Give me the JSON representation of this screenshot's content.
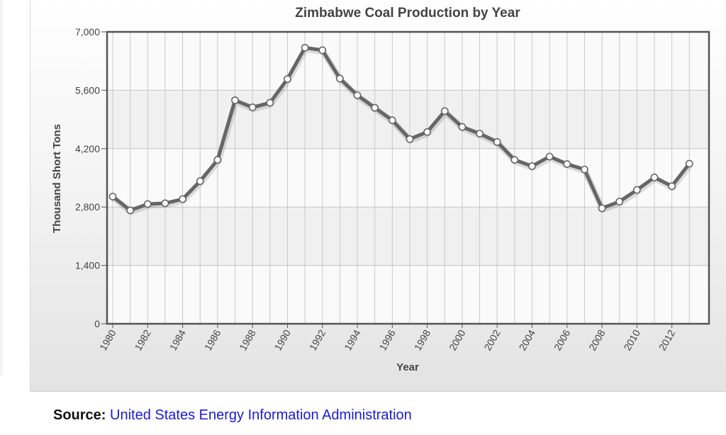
{
  "chart_data": {
    "type": "line",
    "title": "Zimbabwe Coal Production by Year",
    "xlabel": "Year",
    "ylabel": "Thousand Short Tons",
    "ylim": [
      0,
      7000
    ],
    "yticks": [
      "0",
      "1,400",
      "2,800",
      "4,200",
      "5,600",
      "7,000"
    ],
    "ytick_values": [
      0,
      1400,
      2800,
      4200,
      5600,
      7000
    ],
    "xticks": [
      "1980",
      "1982",
      "1984",
      "1986",
      "1988",
      "1990",
      "1992",
      "1994",
      "1996",
      "1998",
      "2000",
      "2002",
      "2004",
      "2006",
      "2008",
      "2010",
      "2012"
    ],
    "grid": true,
    "legend": "none",
    "line_color": "#666666",
    "marker_fill": "#ffffff",
    "series": [
      {
        "x": [
          1980,
          1981,
          1982,
          1983,
          1984,
          1985,
          1986,
          1987,
          1988,
          1989,
          1990,
          1991,
          1992,
          1993,
          1994,
          1995,
          1996,
          1997,
          1998,
          1999,
          2000,
          2001,
          2002,
          2003,
          2004,
          2005,
          2006,
          2007,
          2008,
          2009,
          2010,
          2011,
          2012,
          2013
        ],
        "values": [
          3050,
          2720,
          2870,
          2890,
          2990,
          3420,
          3930,
          5360,
          5190,
          5300,
          5870,
          6620,
          6560,
          5880,
          5480,
          5180,
          4880,
          4430,
          4600,
          5100,
          4720,
          4560,
          4360,
          3930,
          3780,
          4010,
          3830,
          3700,
          2770,
          2930,
          3210,
          3510,
          3300,
          3840
        ]
      }
    ]
  },
  "source": {
    "label": "Source:",
    "text": "United States Energy Information Administration"
  }
}
